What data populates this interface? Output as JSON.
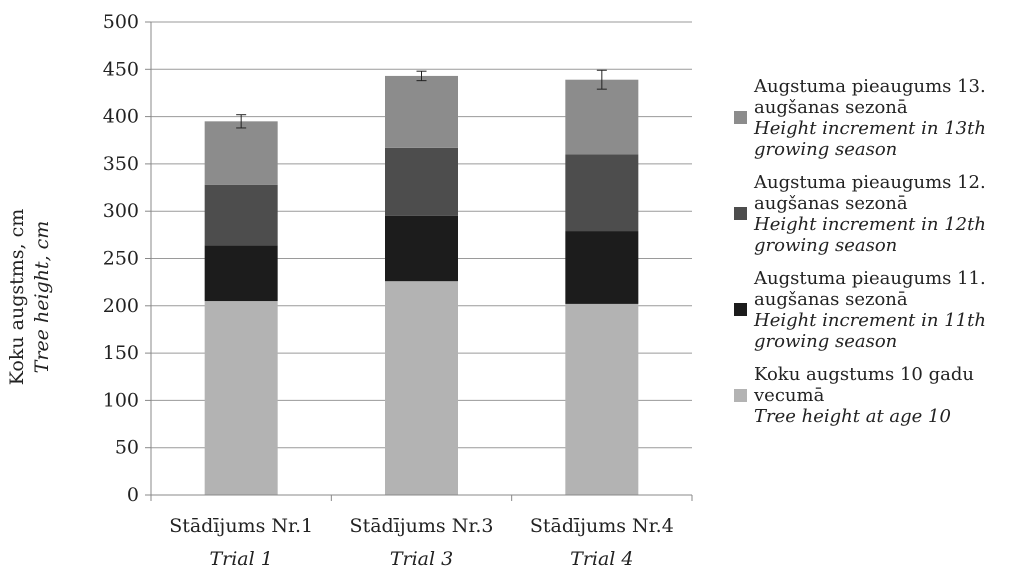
{
  "chart_data": {
    "type": "bar",
    "stacked": true,
    "categories": [
      "Stādījums Nr.1",
      "Stādījums Nr.3",
      "Stādījums Nr.4"
    ],
    "categories_en": [
      "Trial 1",
      "Trial 3",
      "Trial 4"
    ],
    "ylabel": "Koku augstms, cm",
    "ylabel_en": "Tree height, cm",
    "ylim": [
      0,
      500
    ],
    "yticks": [
      0,
      50,
      100,
      150,
      200,
      250,
      300,
      350,
      400,
      450,
      500
    ],
    "grid": true,
    "legend_position": "right",
    "series": [
      {
        "name": "Koku augstums 10 gadu vecumā",
        "name_en": "Tree height at age 10",
        "color": "#b3b3b3",
        "values": [
          205,
          226,
          202
        ]
      },
      {
        "name": "Augstuma pieaugums 11. augšanas sezonā",
        "name_en": "Height increment in 11th growing season",
        "color": "#1c1c1c",
        "values": [
          59,
          69,
          77
        ]
      },
      {
        "name": "Augstuma pieaugums 12. augšanas sezonā",
        "name_en": "Height increment in 12th growing season",
        "color": "#4d4d4d",
        "values": [
          64,
          72,
          81
        ]
      },
      {
        "name": "Augstuma pieaugums 13. augšanas sezonā",
        "name_en": "Height increment in 13th growing season",
        "color": "#8c8c8c",
        "values": [
          67,
          76,
          79
        ]
      }
    ],
    "error_bars": [
      7,
      5,
      10
    ]
  },
  "legend_order": [
    3,
    2,
    1,
    0
  ],
  "colors": {
    "axis": "#888888",
    "grid": "#9a9a9a",
    "text": "#222222"
  }
}
